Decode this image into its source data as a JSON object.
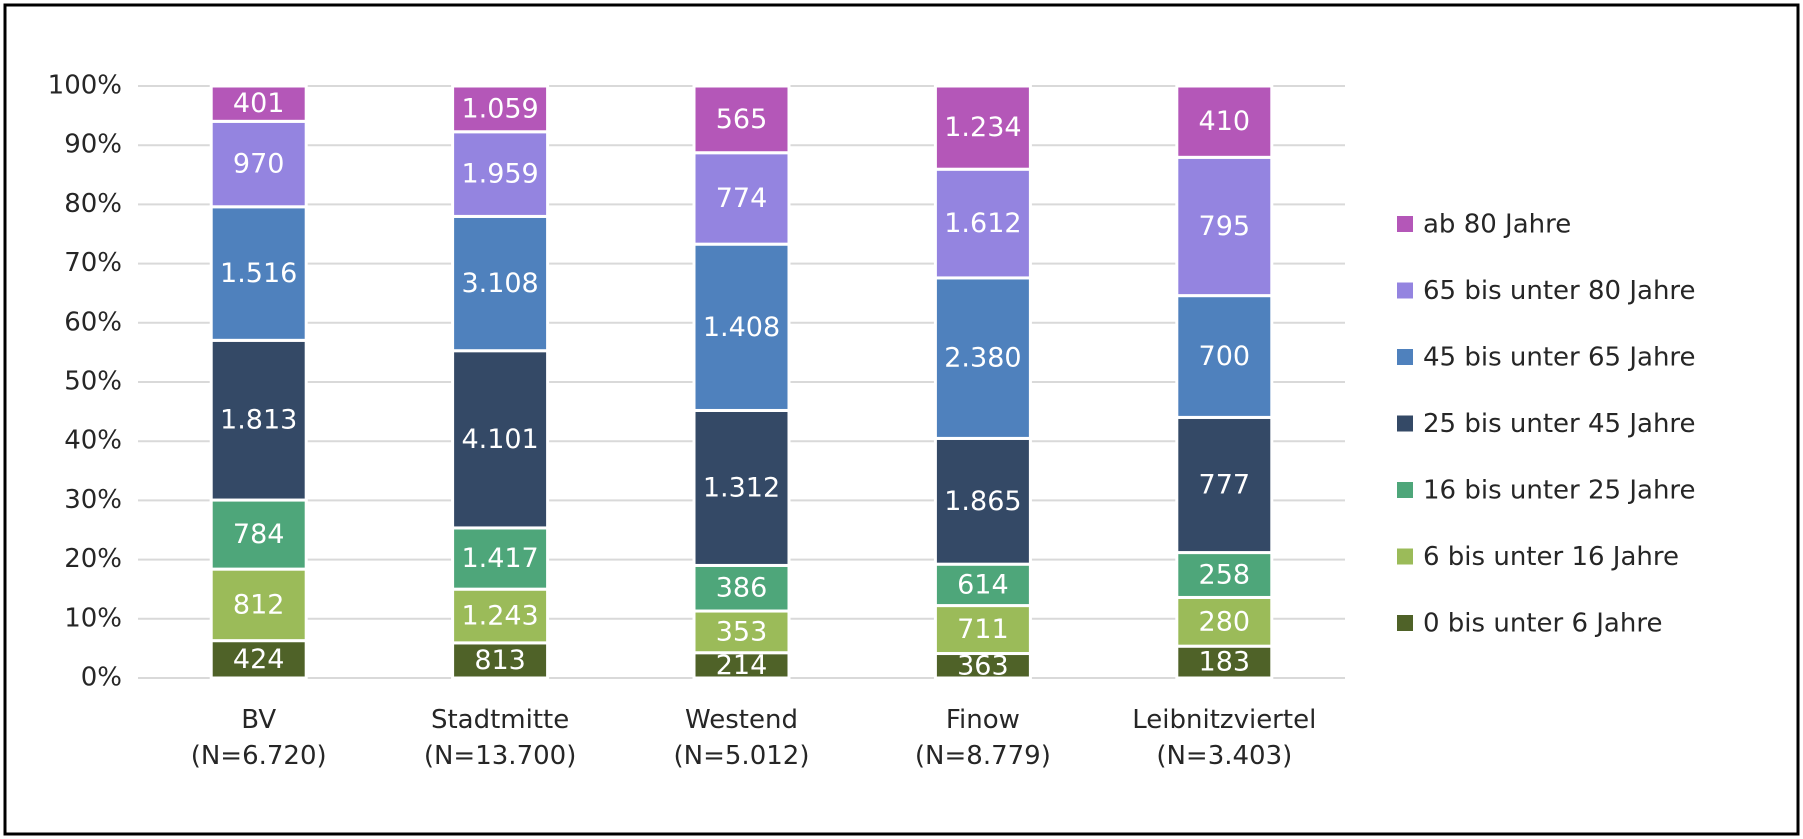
{
  "chart_data": {
    "type": "bar",
    "stacked": "percent",
    "categories": [
      "BV\n(N=6.720)",
      "Stadtmitte\n(N=13.700)",
      "Westend\n(N=5.012)",
      "Finow\n(N=8.779)",
      "Leibnitzviertel\n(N=3.403)"
    ],
    "series": [
      {
        "name": "0 bis unter 6 Jahre",
        "color": "#4f6228",
        "values": [
          424,
          813,
          214,
          363,
          183
        ]
      },
      {
        "name": "6 bis unter 16 Jahre",
        "color": "#9bbb59",
        "values": [
          812,
          1243,
          353,
          711,
          280
        ],
        "value_labels": [
          "812",
          "1.243",
          "353",
          "711",
          "280"
        ]
      },
      {
        "name": "16 bis unter 25 Jahre",
        "color": "#4ea67a",
        "values": [
          784,
          1417,
          386,
          614,
          258
        ],
        "value_labels": [
          "784",
          "1.417",
          "386",
          "614",
          "258"
        ]
      },
      {
        "name": "25 bis unter 45 Jahre",
        "color": "#344966",
        "values": [
          1813,
          4101,
          1312,
          1865,
          777
        ],
        "value_labels": [
          "1.813",
          "4.101",
          "1.312",
          "1.865",
          "777"
        ]
      },
      {
        "name": "45 bis unter 65 Jahre",
        "color": "#4f81bd",
        "values": [
          1516,
          3108,
          1408,
          2380,
          700
        ],
        "value_labels": [
          "1.516",
          "3.108",
          "1.408",
          "2.380",
          "700"
        ]
      },
      {
        "name": "65 bis unter 80 Jahre",
        "color": "#9484e0",
        "values": [
          970,
          1959,
          774,
          1612,
          795
        ],
        "value_labels": [
          "970",
          "1.959",
          "774",
          "1.612",
          "795"
        ]
      },
      {
        "name": "ab 80 Jahre",
        "color": "#b457b8",
        "values": [
          401,
          1059,
          565,
          1234,
          410
        ],
        "value_labels": [
          "401",
          "1.059",
          "565",
          "1.234",
          "410"
        ]
      }
    ],
    "ylim": [
      0,
      100
    ],
    "yticks": [
      {
        "value": 0,
        "label": "0%"
      },
      {
        "value": 10,
        "label": "10%"
      },
      {
        "value": 20,
        "label": "20%"
      },
      {
        "value": 30,
        "label": "30%"
      },
      {
        "value": 40,
        "label": "40%"
      },
      {
        "value": 50,
        "label": "50%"
      },
      {
        "value": 60,
        "label": "60%"
      },
      {
        "value": 70,
        "label": "70%"
      },
      {
        "value": 80,
        "label": "80%"
      },
      {
        "value": 90,
        "label": "90%"
      },
      {
        "value": 100,
        "label": "100%"
      }
    ],
    "grid": true,
    "legend": "right"
  }
}
